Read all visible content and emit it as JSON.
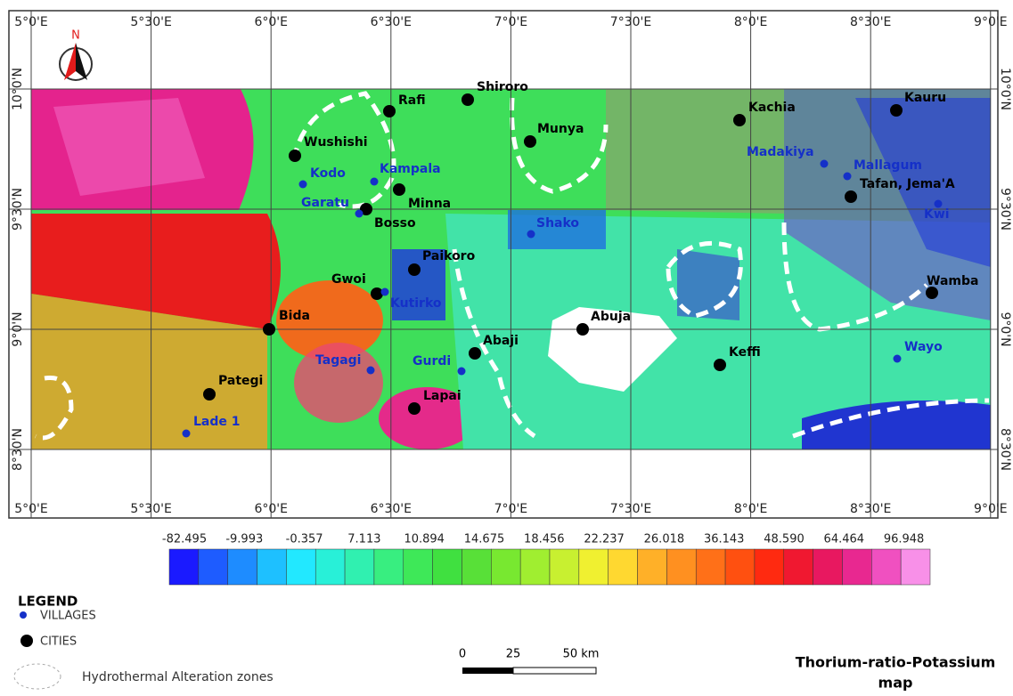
{
  "longitudes": [
    "5°0'E",
    "5°30'E",
    "6°0'E",
    "6°30'E",
    "7°0'E",
    "7°30'E",
    "8°0'E",
    "8°30'E",
    "9°0'E"
  ],
  "latitudes": [
    "10°0'N",
    "9°30'N",
    "9°0'N",
    "8°30'N"
  ],
  "north_label": "N",
  "cities": [
    "Shiroro",
    "Rafi",
    "Wushishi",
    "Munya",
    "Kachia",
    "Kauru",
    "Minna",
    "Bosso",
    "Tafan, Jema'A",
    "Paikoro",
    "Gwoi",
    "Bida",
    "Abuja",
    "Abaji",
    "Keffi",
    "Wamba",
    "Pategi",
    "Lapai"
  ],
  "villages": [
    "Kodo",
    "Kampala",
    "Garatu",
    "Shako",
    "Kutirko",
    "Tagagi",
    "Gurdi",
    "Lade 1",
    "Madakiya",
    "Mallagum",
    "Kwi",
    "Wayo"
  ],
  "colorbar_labels": [
    "-82.495",
    "-9.993",
    "-0.357",
    "7.113",
    "10.894",
    "14.675",
    "18.456",
    "22.237",
    "26.018",
    "36.143",
    "48.590",
    "64.464",
    "96.948"
  ],
  "legend": {
    "title": "LEGEND",
    "villages": "VILLAGES",
    "cities": "CITIES",
    "zones": "Hydrothermal Alteration zones"
  },
  "scale_bar": [
    "0",
    "25",
    "50 km"
  ],
  "map_title": [
    "Thorium-ratio-Potassium",
    "map"
  ]
}
